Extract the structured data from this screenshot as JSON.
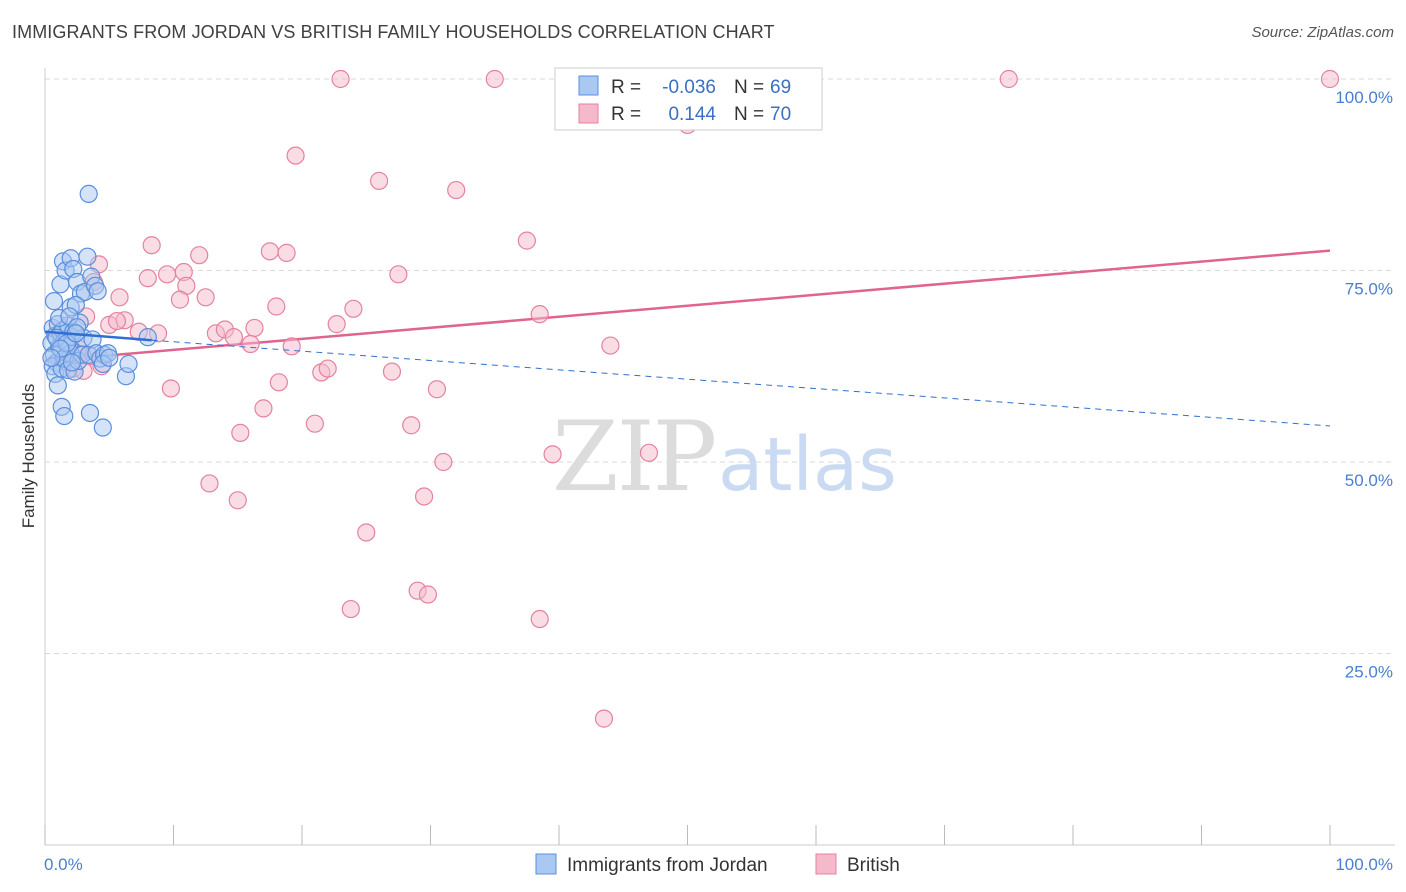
{
  "header": {
    "title": "IMMIGRANTS FROM JORDAN VS BRITISH FAMILY HOUSEHOLDS CORRELATION CHART",
    "source": "Source: ZipAtlas.com"
  },
  "watermark": {
    "zip": "ZIP",
    "atlas": "atlas"
  },
  "colors": {
    "blue_fill": "#a9c8f2",
    "blue_stroke": "#5b8fdc",
    "blue_line": "#2f6fd3",
    "pink_fill": "#f6b9cb",
    "pink_stroke": "#e4829f",
    "pink_line": "#e0648d",
    "grid": "#d9d9d9",
    "tick_text": "#4a7fd0"
  },
  "legend": {
    "rows": [
      {
        "r_label": "R =",
        "r_value": "-0.036",
        "n_label": "N =",
        "n_value": "69",
        "series": "blue"
      },
      {
        "r_label": "R =",
        "r_value": "0.144",
        "n_label": "N =",
        "n_value": "70",
        "series": "pink"
      }
    ]
  },
  "bottom_legend": {
    "items": [
      {
        "label": "Immigrants from Jordan",
        "series": "blue"
      },
      {
        "label": "British",
        "series": "pink"
      }
    ]
  },
  "chart_data": {
    "type": "scatter",
    "title": "IMMIGRANTS FROM JORDAN VS BRITISH FAMILY HOUSEHOLDS CORRELATION CHART",
    "xlabel": "",
    "ylabel": "Family Households",
    "xlim": [
      0,
      100
    ],
    "ylim": [
      0,
      100
    ],
    "x_tick_labels": [
      "0.0%",
      "100.0%"
    ],
    "y_ticks": [
      25,
      50,
      75,
      100
    ],
    "y_tick_labels": [
      "25.0%",
      "50.0%",
      "75.0%",
      "100.0%"
    ],
    "grid": true,
    "series": [
      {
        "name": "Immigrants from Jordan",
        "color": "blue",
        "R": -0.036,
        "N": 69,
        "trend_solid": {
          "x": [
            0,
            8.3
          ],
          "y": [
            67.0,
            65.9
          ]
        },
        "trend_dashed": {
          "x": [
            8.3,
            100
          ],
          "y": [
            65.9,
            54.7
          ]
        },
        "points": [
          [
            0.5,
            65.5
          ],
          [
            0.6,
            67.5
          ],
          [
            0.7,
            64.0
          ],
          [
            0.8,
            66.5
          ],
          [
            0.9,
            63.0
          ],
          [
            1.0,
            68.0
          ],
          [
            1.1,
            65.0
          ],
          [
            1.2,
            66.8
          ],
          [
            1.3,
            64.5
          ],
          [
            1.4,
            67.2
          ],
          [
            1.5,
            65.8
          ],
          [
            1.6,
            63.8
          ],
          [
            1.7,
            66.0
          ],
          [
            1.8,
            67.8
          ],
          [
            1.9,
            65.2
          ],
          [
            2.0,
            64.2
          ],
          [
            2.1,
            66.3
          ],
          [
            2.2,
            67.0
          ],
          [
            0.6,
            62.5
          ],
          [
            0.8,
            61.5
          ],
          [
            1.0,
            60.0
          ],
          [
            1.3,
            62.2
          ],
          [
            1.5,
            63.5
          ],
          [
            1.8,
            62.0
          ],
          [
            2.3,
            61.8
          ],
          [
            2.6,
            63.2
          ],
          [
            2.9,
            64.0
          ],
          [
            0.7,
            71.0
          ],
          [
            1.2,
            73.2
          ],
          [
            1.4,
            76.2
          ],
          [
            1.6,
            75.0
          ],
          [
            2.0,
            76.6
          ],
          [
            2.2,
            75.2
          ],
          [
            2.5,
            73.5
          ],
          [
            2.8,
            72.0
          ],
          [
            3.1,
            72.2
          ],
          [
            3.3,
            76.8
          ],
          [
            3.6,
            74.2
          ],
          [
            3.9,
            73.0
          ],
          [
            4.1,
            72.3
          ],
          [
            2.0,
            70.2
          ],
          [
            2.4,
            70.5
          ],
          [
            2.7,
            68.2
          ],
          [
            3.0,
            66.2
          ],
          [
            3.4,
            64.0
          ],
          [
            3.7,
            66.0
          ],
          [
            4.0,
            64.2
          ],
          [
            4.3,
            63.5
          ],
          [
            4.6,
            64.0
          ],
          [
            4.9,
            64.2
          ],
          [
            4.5,
            62.8
          ],
          [
            5.0,
            63.6
          ],
          [
            6.3,
            61.2
          ],
          [
            6.5,
            62.8
          ],
          [
            8.0,
            66.3
          ],
          [
            3.4,
            85.0
          ],
          [
            1.3,
            57.2
          ],
          [
            1.5,
            56.0
          ],
          [
            3.5,
            56.4
          ],
          [
            4.5,
            54.5
          ],
          [
            1.1,
            68.8
          ],
          [
            1.9,
            69.0
          ],
          [
            2.5,
            67.6
          ],
          [
            0.9,
            66.2
          ],
          [
            1.7,
            65.5
          ],
          [
            2.1,
            63.0
          ],
          [
            2.4,
            66.8
          ],
          [
            1.2,
            64.8
          ],
          [
            0.5,
            63.6
          ]
        ]
      },
      {
        "name": "British",
        "color": "pink",
        "R": 0.144,
        "N": 70,
        "trend_solid": {
          "x": [
            0,
            100
          ],
          "y": [
            63.2,
            77.6
          ]
        },
        "points": [
          [
            23.0,
            100.0
          ],
          [
            35.0,
            100.0
          ],
          [
            75.0,
            100.0
          ],
          [
            100.0,
            100.0
          ],
          [
            50.0,
            94.0
          ],
          [
            19.5,
            90.0
          ],
          [
            26.0,
            86.7
          ],
          [
            32.0,
            85.5
          ],
          [
            37.5,
            78.9
          ],
          [
            8.3,
            78.3
          ],
          [
            12.0,
            77.0
          ],
          [
            17.5,
            77.5
          ],
          [
            18.8,
            77.3
          ],
          [
            4.2,
            75.8
          ],
          [
            9.5,
            74.5
          ],
          [
            10.8,
            74.8
          ],
          [
            27.5,
            74.5
          ],
          [
            8.0,
            74.0
          ],
          [
            11.0,
            73.0
          ],
          [
            3.8,
            73.5
          ],
          [
            5.8,
            71.5
          ],
          [
            10.5,
            71.2
          ],
          [
            12.5,
            71.5
          ],
          [
            18.0,
            70.3
          ],
          [
            24.0,
            70.0
          ],
          [
            38.5,
            69.3
          ],
          [
            3.2,
            69.0
          ],
          [
            5.0,
            67.9
          ],
          [
            6.2,
            68.5
          ],
          [
            7.3,
            67.0
          ],
          [
            8.8,
            66.8
          ],
          [
            13.3,
            66.8
          ],
          [
            14.0,
            67.3
          ],
          [
            14.7,
            66.3
          ],
          [
            16.3,
            67.5
          ],
          [
            22.7,
            68.0
          ],
          [
            16.0,
            65.4
          ],
          [
            19.2,
            65.1
          ],
          [
            44.0,
            65.2
          ],
          [
            1.8,
            64.6
          ],
          [
            2.6,
            64.0
          ],
          [
            3.5,
            63.8
          ],
          [
            1.6,
            63.1
          ],
          [
            2.2,
            62.2
          ],
          [
            21.5,
            61.7
          ],
          [
            22.0,
            62.2
          ],
          [
            27.0,
            61.8
          ],
          [
            18.2,
            60.4
          ],
          [
            9.8,
            59.6
          ],
          [
            30.5,
            59.5
          ],
          [
            17.0,
            57.0
          ],
          [
            21.0,
            55.0
          ],
          [
            28.5,
            54.8
          ],
          [
            15.2,
            53.8
          ],
          [
            39.5,
            51.0
          ],
          [
            47.0,
            51.2
          ],
          [
            31.0,
            50.0
          ],
          [
            12.8,
            47.2
          ],
          [
            15.0,
            45.0
          ],
          [
            29.5,
            45.5
          ],
          [
            25.0,
            40.8
          ],
          [
            29.0,
            33.2
          ],
          [
            29.8,
            32.7
          ],
          [
            23.8,
            30.8
          ],
          [
            38.5,
            29.5
          ],
          [
            43.5,
            16.5
          ],
          [
            2.6,
            64.8
          ],
          [
            3.0,
            61.9
          ],
          [
            4.4,
            62.5
          ],
          [
            5.6,
            68.4
          ]
        ]
      }
    ]
  }
}
